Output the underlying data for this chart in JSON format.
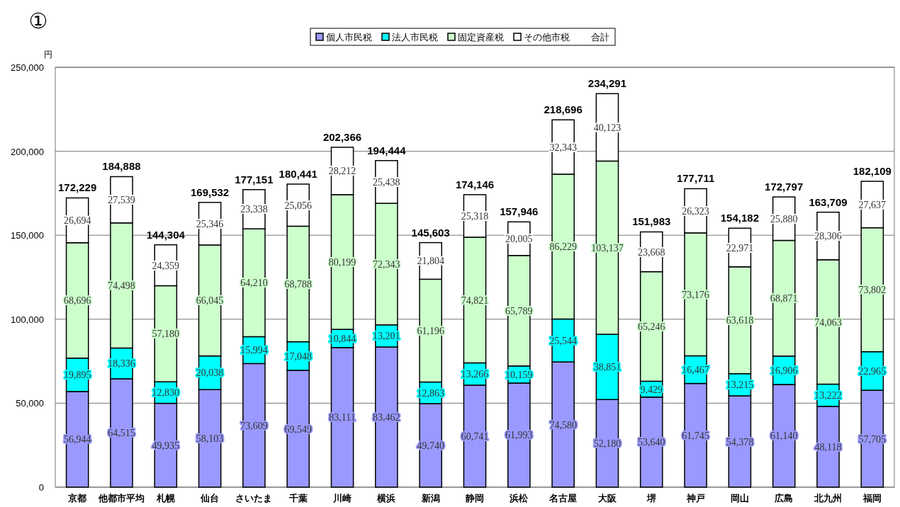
{
  "chart_data": {
    "type": "bar",
    "stacked": true,
    "ylabel": "円",
    "categories": [
      "京都",
      "他都市平均",
      "札幌",
      "仙台",
      "さいたま",
      "千葉",
      "川崎",
      "横浜",
      "新潟",
      "静岡",
      "浜松",
      "名古屋",
      "大阪",
      "堺",
      "神戸",
      "岡山",
      "広島",
      "北九州",
      "福岡"
    ],
    "series": [
      {
        "name": "個人市民税",
        "color": "#9999ff",
        "values": [
          56944,
          64515,
          49935,
          58103,
          73609,
          69549,
          83111,
          83462,
          49740,
          60741,
          61993,
          74580,
          52180,
          53640,
          61745,
          54378,
          61140,
          48118,
          57705
        ],
        "value_labels": [
          "56,944",
          "64,515",
          "49,935",
          "58,103",
          "73,609",
          "69,549",
          "83,111",
          "83,462",
          "49,740",
          "60,741",
          "61,993",
          "74,580",
          "52,180",
          "53,640",
          "61,745",
          "54,378",
          "61,140",
          "48,118",
          "57,705"
        ]
      },
      {
        "name": "法人市民税",
        "color": "#00ffff",
        "values": [
          19895,
          18336,
          12830,
          20038,
          15994,
          17048,
          10844,
          13201,
          12863,
          13266,
          10159,
          25544,
          38851,
          9429,
          16467,
          13215,
          16906,
          13222,
          22965
        ],
        "value_labels": [
          "19,895",
          "18,336",
          "12,830",
          "20,038",
          "15,994",
          "17,048",
          "10,844",
          "13,201",
          "12,863",
          "13,266",
          "10,159",
          "25,544",
          "38,851",
          "9,429",
          "16,467",
          "13,215",
          "16,906",
          "13,222",
          "22,965"
        ]
      },
      {
        "name": "固定資産税",
        "color": "#ccffcc",
        "values": [
          68696,
          74498,
          57180,
          66045,
          64210,
          68788,
          80199,
          72343,
          61196,
          74821,
          65789,
          86229,
          103137,
          65246,
          73176,
          63618,
          68871,
          74063,
          73802
        ],
        "value_labels": [
          "68,696",
          "74,498",
          "57,180",
          "66,045",
          "64,210",
          "68,788",
          "80,199",
          "72,343",
          "61,196",
          "74,821",
          "65,789",
          "86,229",
          "103,137",
          "65,246",
          "73,176",
          "63,618",
          "68,871",
          "74,063",
          "73,802"
        ]
      },
      {
        "name": "その他市税",
        "color": "#ffffff",
        "values": [
          26694,
          27539,
          24359,
          25346,
          23338,
          25056,
          28212,
          25438,
          21804,
          25318,
          20005,
          32343,
          40123,
          23668,
          26323,
          22971,
          25880,
          28306,
          27637
        ],
        "value_labels": [
          "26,694",
          "27,539",
          "24,359",
          "25,346",
          "23,338",
          "25,056",
          "28,212",
          "25,438",
          "21,804",
          "25,318",
          "20,005",
          "32,343",
          "40,123",
          "23,668",
          "26,323",
          "22,971",
          "25,880",
          "28,306",
          "27,637"
        ]
      }
    ],
    "totals": [
      "172,229",
      "184,888",
      "144,304",
      "169,532",
      "177,151",
      "180,441",
      "202,366",
      "194,444",
      "145,603",
      "174,146",
      "157,946",
      "218,696",
      "234,291",
      "151,983",
      "177,711",
      "154,182",
      "172,797",
      "163,709",
      "182,109"
    ],
    "ylim": [
      0,
      250000
    ],
    "yticks": [
      0,
      {
        "value": 50000,
        "label": "50,000"
      },
      {
        "value": 100000,
        "label": "100,000"
      },
      {
        "value": 150000,
        "label": "150,000"
      },
      {
        "value": 200000,
        "label": "200,000"
      },
      {
        "value": 250000,
        "label": "250,000"
      }
    ],
    "grid": "y",
    "legend": "top",
    "annotations": [
      "①",
      "合計"
    ]
  }
}
